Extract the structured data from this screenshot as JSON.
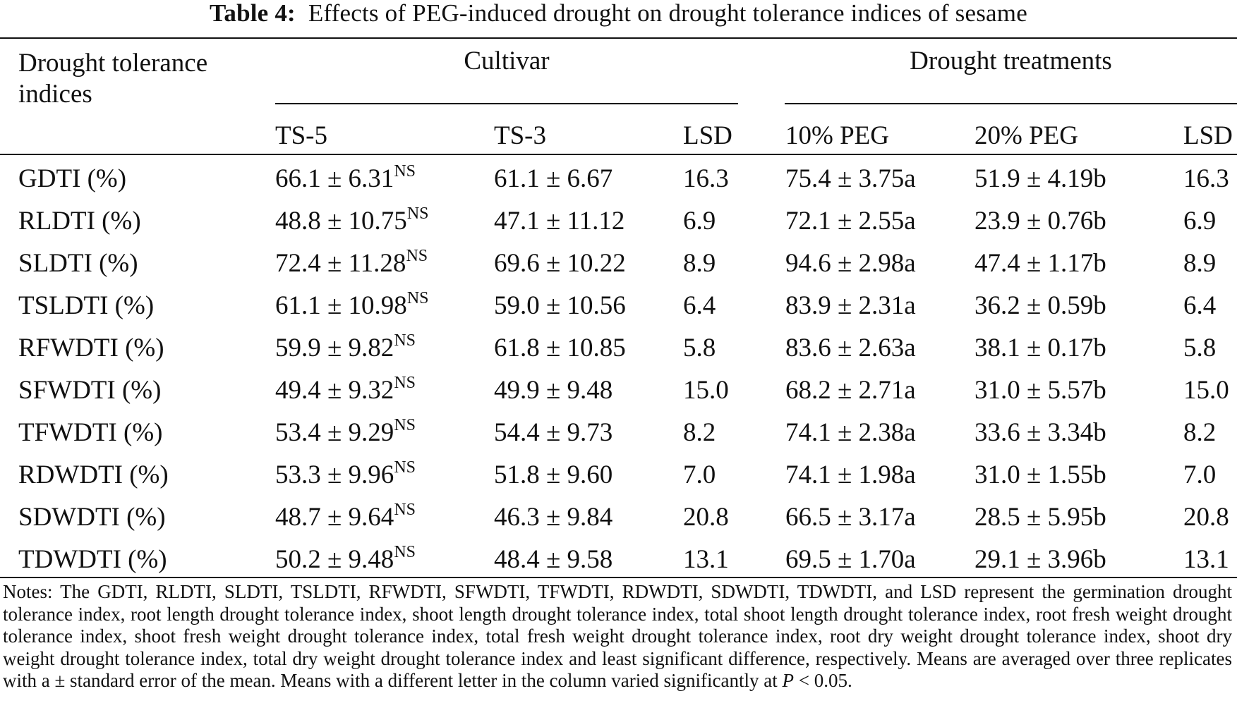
{
  "title": {
    "label": "Table 4:",
    "text": "Effects of PEG-induced drought on drought tolerance indices of sesame"
  },
  "headers": {
    "index_col": "Drought tolerance indices",
    "cultivar_group": "Cultivar",
    "treatment_group": "Drought treatments",
    "sub": [
      "TS-5",
      "TS-3",
      "LSD",
      "10% PEG",
      "20% PEG",
      "LSD"
    ]
  },
  "rows": [
    {
      "index": "GDTI (%)",
      "ts5": "66.1 ± 6.31",
      "ts5_sup": "NS",
      "ts3": "61.1 ± 6.67",
      "lsd1": "16.3",
      "peg10": "75.4 ± 3.75a",
      "peg20": "51.9 ± 4.19b",
      "lsd2": "16.3"
    },
    {
      "index": "RLDTI (%)",
      "ts5": "48.8 ± 10.75",
      "ts5_sup": "NS",
      "ts3": "47.1 ± 11.12",
      "lsd1": "6.9",
      "peg10": "72.1 ± 2.55a",
      "peg20": "23.9 ± 0.76b",
      "lsd2": "6.9"
    },
    {
      "index": "SLDTI (%)",
      "ts5": "72.4 ± 11.28",
      "ts5_sup": "NS",
      "ts3": "69.6 ± 10.22",
      "lsd1": "8.9",
      "peg10": "94.6 ± 2.98a",
      "peg20": "47.4 ± 1.17b",
      "lsd2": "8.9"
    },
    {
      "index": "TSLDTI (%)",
      "ts5": "61.1 ± 10.98",
      "ts5_sup": "NS",
      "ts3": "59.0 ± 10.56",
      "lsd1": "6.4",
      "peg10": "83.9 ± 2.31a",
      "peg20": "36.2 ± 0.59b",
      "lsd2": "6.4"
    },
    {
      "index": "RFWDTI (%)",
      "ts5": "59.9 ± 9.82",
      "ts5_sup": "NS",
      "ts3": "61.8 ± 10.85",
      "lsd1": "5.8",
      "peg10": "83.6 ± 2.63a",
      "peg20": "38.1 ± 0.17b",
      "lsd2": "5.8"
    },
    {
      "index": "SFWDTI (%)",
      "ts5": "49.4 ± 9.32",
      "ts5_sup": "NS",
      "ts3": "49.9 ± 9.48",
      "lsd1": "15.0",
      "peg10": "68.2 ± 2.71a",
      "peg20": "31.0 ± 5.57b",
      "lsd2": "15.0"
    },
    {
      "index": "TFWDTI (%)",
      "ts5": "53.4 ± 9.29",
      "ts5_sup": "NS",
      "ts3": "54.4 ± 9.73",
      "lsd1": "8.2",
      "peg10": "74.1 ± 2.38a",
      "peg20": "33.6 ± 3.34b",
      "lsd2": "8.2"
    },
    {
      "index": "RDWDTI (%)",
      "ts5": "53.3 ± 9.96",
      "ts5_sup": "NS",
      "ts3": "51.8 ± 9.60",
      "lsd1": "7.0",
      "peg10": "74.1 ± 1.98a",
      "peg20": "31.0 ± 1.55b",
      "lsd2": "7.0"
    },
    {
      "index": "SDWDTI (%)",
      "ts5": "48.7 ± 9.64",
      "ts5_sup": "NS",
      "ts3": "46.3 ± 9.84",
      "lsd1": "20.8",
      "peg10": "66.5 ± 3.17a",
      "peg20": "28.5 ± 5.95b",
      "lsd2": "20.8"
    },
    {
      "index": "TDWDTI (%)",
      "ts5": "50.2 ± 9.48",
      "ts5_sup": "NS",
      "ts3": "48.4 ± 9.58",
      "lsd1": "13.1",
      "peg10": "69.5 ± 1.70a",
      "peg20": "29.1 ± 3.96b",
      "lsd2": "13.1"
    }
  ],
  "notes": {
    "main": "Notes: The GDTI, RLDTI, SLDTI, TSLDTI, RFWDTI, SFWDTI, TFWDTI, RDWDTI, SDWDTI, TDWDTI, and LSD represent the germination drought tolerance index, root length drought tolerance index, shoot length drought tolerance index, total shoot length drought tolerance index, root fresh weight drought tolerance index, shoot fresh weight drought tolerance index, total fresh weight drought tolerance index, root dry weight drought tolerance index, shoot dry weight drought tolerance index, total dry weight drought tolerance index and least significant difference, respectively. Means are averaged over three replicates with a ± standard error of the mean. Means with a different letter in the column varied significantly at ",
    "p_symbol": "P",
    "p_value": " < 0.05."
  }
}
